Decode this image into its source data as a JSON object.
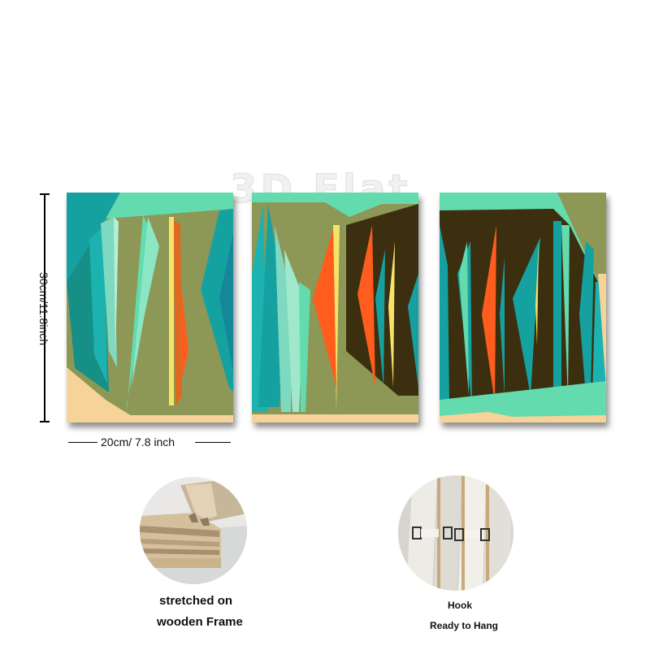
{
  "watermark": "3D Flat",
  "dimensions": {
    "height_label": "30cm/11.8inch",
    "width_label": "20cm/ 7.8 inch"
  },
  "features": {
    "frame": {
      "line1": "stretched on",
      "line2": "wooden Frame"
    },
    "hook": {
      "line1": "Hook",
      "line2": "Ready to Hang"
    }
  },
  "colors": {
    "teal": "#16a1a1",
    "mint": "#64dbae",
    "olive": "#8d9856",
    "dark_brown": "#3b2f0f",
    "orange": "#ff5d1d",
    "yellow": "#f6e36a",
    "sand": "#f6d399"
  }
}
